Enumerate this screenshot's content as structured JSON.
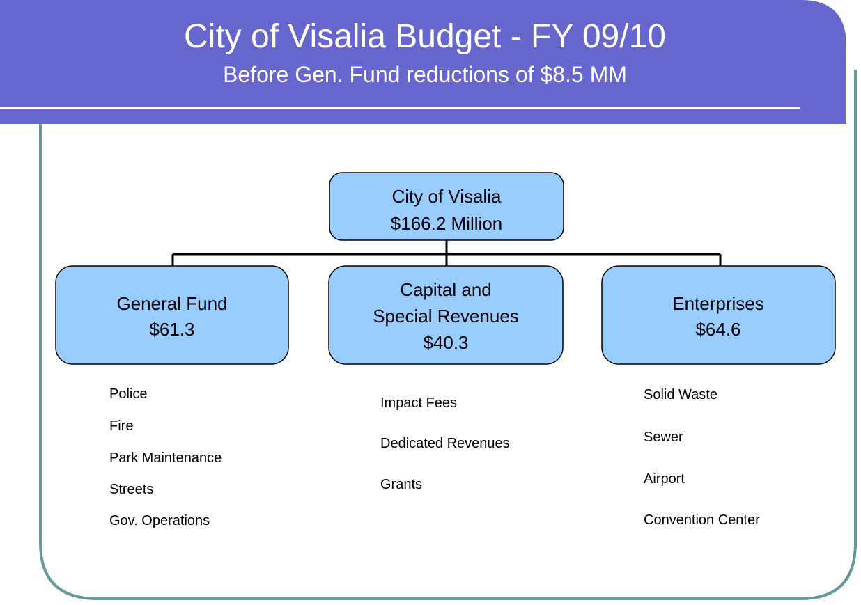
{
  "header": {
    "title": "City of Visalia Budget - FY 09/10",
    "subtitle": "Before Gen. Fund reductions of $8.5 MM"
  },
  "nodes": [
    {
      "lines": [
        "City of Visalia",
        "$166.2 Million"
      ]
    },
    {
      "lines": [
        "General Fund",
        "$61.3"
      ]
    },
    {
      "lines": [
        "Capital and",
        "Special Revenues",
        "$40.3"
      ]
    },
    {
      "lines": [
        "Enterprises",
        "$64.6"
      ]
    }
  ],
  "lists": [
    [
      "Police",
      "Fire",
      "Park Maintenance",
      "Streets",
      "Gov. Operations"
    ],
    [
      "Impact Fees",
      "Dedicated Revenues",
      "Grants"
    ],
    [
      "Solid Waste",
      "Sewer",
      "Airport",
      "Convention Center"
    ]
  ]
}
